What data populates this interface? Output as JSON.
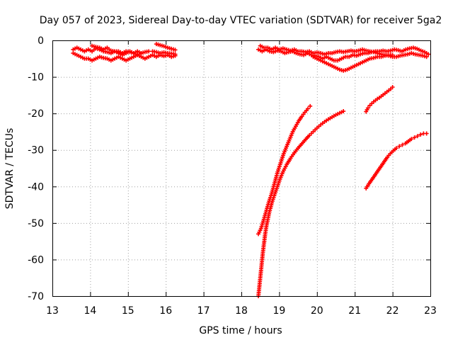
{
  "chart_data": {
    "type": "scatter",
    "title": "Day 057 of 2023, Sidereal Day-to-day VTEC variation (SDTVAR) for receiver 5ga2",
    "xlabel": "GPS time / hours",
    "ylabel": "SDTVAR / TECUs",
    "xlim": [
      13,
      23
    ],
    "ylim": [
      -70,
      0
    ],
    "xticks": [
      13,
      14,
      15,
      16,
      17,
      18,
      19,
      20,
      21,
      22,
      23
    ],
    "yticks": [
      0,
      -10,
      -20,
      -30,
      -40,
      -50,
      -60,
      -70
    ],
    "grid": true,
    "marker": "+",
    "color": "#ff0000",
    "series": [
      {
        "x": [
          13.55,
          13.65,
          13.75,
          13.85,
          13.95,
          14.05,
          14.15,
          14.25,
          14.35,
          14.45,
          14.55,
          14.65,
          14.75,
          14.85,
          14.95,
          15.05,
          15.15,
          15.25,
          15.35,
          15.45,
          15.55,
          15.65,
          15.75,
          15.85,
          15.95,
          16.05,
          16.15,
          16.25
        ],
        "y": [
          -3.5,
          -4.0,
          -4.5,
          -5.0,
          -5.0,
          -5.5,
          -5.0,
          -4.5,
          -4.8,
          -5.0,
          -5.5,
          -5.0,
          -4.5,
          -5.0,
          -5.5,
          -5.0,
          -4.5,
          -4.0,
          -4.5,
          -5.0,
          -4.5,
          -4.0,
          -4.5,
          -4.0,
          -4.3,
          -4.0,
          -4.5,
          -4.2
        ]
      },
      {
        "x": [
          13.55,
          13.65,
          13.75,
          13.85,
          13.95,
          14.05,
          14.15,
          14.25,
          14.35,
          14.45,
          14.55,
          14.65,
          14.75,
          14.85,
          14.95,
          15.05,
          15.15,
          15.25,
          15.35
        ],
        "y": [
          -2.5,
          -2.0,
          -2.5,
          -3.0,
          -2.5,
          -3.0,
          -2.2,
          -2.5,
          -3.0,
          -3.2,
          -3.5,
          -3.0,
          -3.5,
          -4.0,
          -3.5,
          -3.0,
          -3.5,
          -4.0,
          -3.5
        ]
      },
      {
        "x": [
          14.05,
          14.15,
          14.25,
          14.35,
          14.45,
          14.55,
          14.65,
          14.75,
          14.85,
          14.95,
          15.05,
          15.15,
          15.25,
          15.35,
          15.45,
          15.55
        ],
        "y": [
          -1.5,
          -1.8,
          -2.0,
          -2.5,
          -2.0,
          -2.8,
          -3.0,
          -3.0,
          -3.5,
          -3.0,
          -3.2,
          -3.5,
          -3.0,
          -3.5,
          -3.2,
          -3.0
        ]
      },
      {
        "x": [
          15.75,
          15.85,
          15.95,
          16.05,
          16.15,
          16.25
        ],
        "y": [
          -1.0,
          -1.3,
          -1.6,
          -2.0,
          -2.3,
          -2.6
        ]
      },
      {
        "x": [
          15.65,
          15.75,
          15.85,
          15.95,
          16.05,
          16.15,
          16.25
        ],
        "y": [
          -3.0,
          -3.2,
          -3.5,
          -3.3,
          -3.5,
          -3.6,
          -3.8
        ]
      },
      {
        "x": [
          18.45,
          18.52,
          18.58,
          18.65,
          18.72,
          18.8,
          18.88,
          18.96,
          19.04,
          19.12,
          19.2,
          19.28,
          19.36,
          19.44,
          19.52,
          19.6,
          19.68,
          19.76,
          19.82
        ],
        "y": [
          -53,
          -51.5,
          -49.5,
          -47,
          -44.5,
          -42,
          -39,
          -36,
          -33.5,
          -31,
          -29,
          -27,
          -25,
          -23.5,
          -22,
          -20.8,
          -19.7,
          -18.7,
          -18
        ]
      },
      {
        "x": [
          18.45,
          18.48,
          18.51,
          18.54,
          18.57,
          18.6,
          18.63,
          18.66,
          18.7,
          18.74,
          18.78,
          18.82,
          18.87,
          18.92,
          18.97,
          19.02,
          19.1,
          19.2,
          19.3,
          19.4,
          19.5,
          19.6,
          19.7,
          19.8,
          19.9,
          20.0,
          20.1,
          20.2,
          20.3,
          20.4,
          20.5,
          20.6,
          20.7
        ],
        "y": [
          -70,
          -67,
          -64,
          -61,
          -58,
          -55.5,
          -53,
          -51,
          -49,
          -47,
          -45.5,
          -44,
          -42.5,
          -41,
          -39.5,
          -38,
          -36,
          -34,
          -32.3,
          -30.8,
          -29.5,
          -28.3,
          -27.1,
          -26,
          -25,
          -24,
          -23.1,
          -22.3,
          -21.6,
          -21,
          -20.4,
          -19.9,
          -19.4
        ]
      },
      {
        "x": [
          18.45,
          18.55,
          18.65,
          18.75,
          18.85,
          18.95,
          19.05,
          19.15,
          19.25,
          19.35,
          19.45,
          19.55,
          19.65,
          19.75,
          19.85,
          19.95,
          20.05,
          20.15,
          20.25,
          20.35,
          20.45,
          20.55,
          20.65,
          20.75,
          20.85,
          20.95,
          21.05,
          21.15,
          21.25,
          21.35,
          21.45,
          21.55,
          21.65,
          21.75,
          21.85,
          21.95,
          22.05,
          22.15,
          22.25,
          22.35,
          22.45,
          22.55,
          22.65,
          22.75,
          22.85,
          22.95
        ],
        "y": [
          -2.5,
          -3.0,
          -2.5,
          -3.0,
          -3.2,
          -2.8,
          -3.0,
          -3.5,
          -3.2,
          -3.0,
          -3.5,
          -3.8,
          -4.0,
          -3.5,
          -4.0,
          -4.2,
          -4.5,
          -5.0,
          -4.5,
          -5.0,
          -5.5,
          -5.5,
          -5.0,
          -4.5,
          -4.5,
          -4.0,
          -4.2,
          -3.8,
          -3.5,
          -3.5,
          -3.2,
          -3.0,
          -3.0,
          -2.8,
          -3.0,
          -2.8,
          -2.5,
          -2.7,
          -3.0,
          -2.5,
          -2.2,
          -2.0,
          -2.3,
          -2.8,
          -3.2,
          -3.8
        ]
      },
      {
        "x": [
          18.5,
          18.6,
          18.7,
          18.8,
          18.9,
          19.0,
          19.1,
          19.2,
          19.3,
          19.4,
          19.5,
          19.6,
          19.7,
          19.8,
          19.9,
          20.0,
          20.1,
          20.2,
          20.3,
          20.4,
          20.5,
          20.6,
          20.7,
          20.8,
          20.9,
          21.0,
          21.1,
          21.2,
          21.3,
          21.4,
          21.5,
          21.6,
          21.7,
          21.8,
          21.9,
          22.0,
          22.1,
          22.2,
          22.3,
          22.4,
          22.5,
          22.6,
          22.7,
          22.8,
          22.9
        ],
        "y": [
          -1.5,
          -2.0,
          -2.0,
          -2.5,
          -2.0,
          -2.5,
          -2.2,
          -2.5,
          -2.8,
          -2.5,
          -3.0,
          -3.0,
          -3.2,
          -3.0,
          -3.5,
          -3.3,
          -3.5,
          -3.8,
          -3.5,
          -3.5,
          -3.2,
          -3.0,
          -3.2,
          -3.0,
          -2.8,
          -3.0,
          -2.8,
          -2.5,
          -2.8,
          -3.0,
          -3.2,
          -3.5,
          -3.8,
          -4.0,
          -4.2,
          -4.5,
          -4.5,
          -4.2,
          -4.0,
          -3.8,
          -3.5,
          -3.8,
          -4.0,
          -4.2,
          -4.5
        ]
      },
      {
        "x": [
          19.9,
          20.0,
          20.1,
          20.2,
          20.3,
          20.4,
          20.5,
          20.6,
          20.7,
          20.8,
          20.9,
          21.0,
          21.1,
          21.2,
          21.3,
          21.4,
          21.5,
          21.6,
          21.7,
          21.8,
          21.9,
          22.0
        ],
        "y": [
          -4.5,
          -5.0,
          -5.5,
          -6.0,
          -6.5,
          -7.0,
          -7.5,
          -8.0,
          -8.3,
          -8.0,
          -7.5,
          -7.0,
          -6.5,
          -6.0,
          -5.5,
          -5.0,
          -4.8,
          -4.5,
          -4.5,
          -4.2,
          -4.0,
          -4.0
        ]
      },
      {
        "x": [
          21.3,
          21.35,
          21.4,
          21.45,
          21.5,
          21.55,
          21.6,
          21.65,
          21.7,
          21.75,
          21.8,
          21.85,
          21.9,
          21.95,
          22.0
        ],
        "y": [
          -19.5,
          -18.5,
          -17.8,
          -17.3,
          -16.8,
          -16.4,
          -16.0,
          -15.7,
          -15.3,
          -14.9,
          -14.5,
          -14.1,
          -13.7,
          -13.3,
          -12.8
        ]
      },
      {
        "x": [
          21.3,
          21.38,
          21.46,
          21.54,
          21.62,
          21.7,
          21.78,
          21.86,
          21.94,
          22.02,
          22.1,
          22.18,
          22.26,
          22.34,
          22.42,
          22.5,
          22.58,
          22.66,
          22.74,
          22.82,
          22.9
        ],
        "y": [
          -40.5,
          -39.2,
          -38,
          -36.8,
          -35.6,
          -34.4,
          -33.2,
          -32,
          -31,
          -30.2,
          -29.5,
          -29,
          -28.6,
          -28.2,
          -27.6,
          -27,
          -26.6,
          -26.2,
          -25.8,
          -25.5,
          -25.5
        ]
      }
    ]
  }
}
